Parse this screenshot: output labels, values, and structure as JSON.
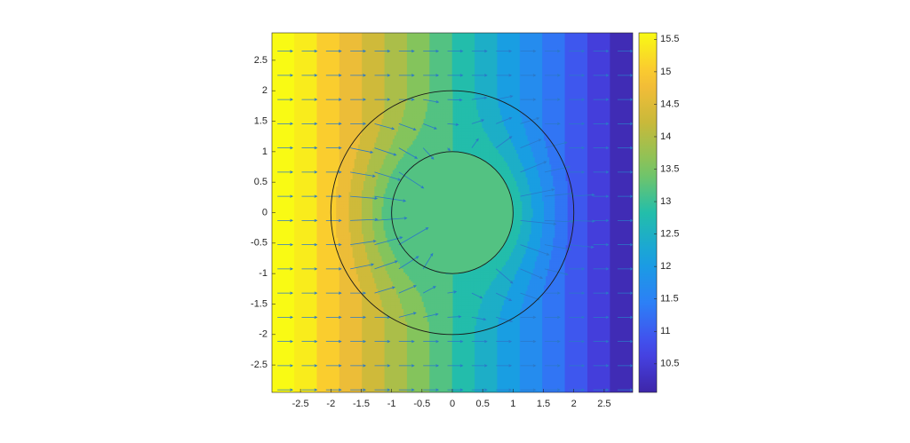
{
  "chart_data": {
    "type": "contour",
    "xlim": [
      -2.97,
      2.97
    ],
    "ylim": [
      -2.95,
      2.95
    ],
    "xticks": [
      -2.5,
      -2,
      -1.5,
      -1,
      -0.5,
      0,
      0.5,
      1,
      1.5,
      2,
      2.5
    ],
    "yticks": [
      -2.5,
      -2,
      -1.5,
      -1,
      -0.5,
      0,
      0.5,
      1,
      1.5,
      2,
      2.5
    ],
    "levels": [
      16,
      15.625,
      15.25,
      14.875,
      14.5,
      14.125,
      13.75,
      13.375,
      13,
      12.625,
      12.25,
      11.875,
      11.5,
      11.125,
      10.75,
      10.375,
      10
    ],
    "clim": [
      10.06,
      15.6
    ],
    "colorbar_ticks": [
      10.5,
      11,
      11.5,
      12,
      12.5,
      13,
      13.5,
      14,
      14.5,
      15,
      15.5
    ],
    "circle_radii": [
      1,
      2
    ]
  }
}
